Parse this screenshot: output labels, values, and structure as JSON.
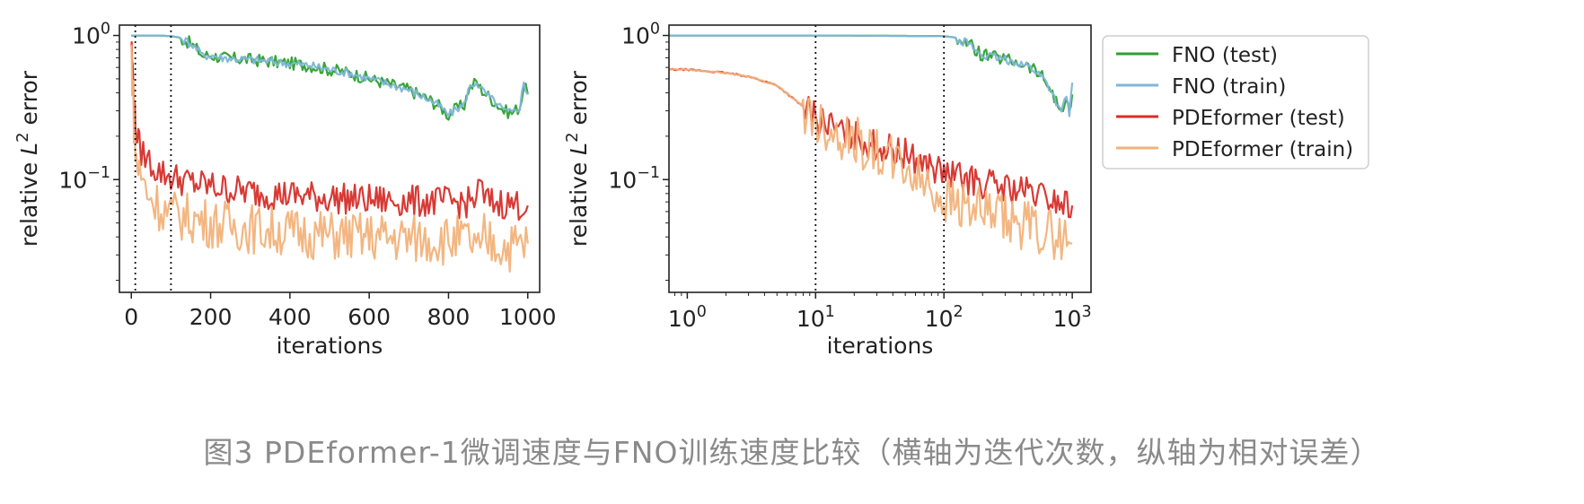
{
  "chart_data": [
    {
      "type": "line",
      "xscale": "linear",
      "yscale": "log",
      "xlabel": "iterations",
      "ylabel_prefix": "relative ",
      "ylabel_var": "L",
      "ylabel_sup": "2",
      "ylabel_suffix": " error",
      "xlim": [
        -30,
        1030
      ],
      "ylim": [
        0.0165,
        1.18
      ],
      "xticks": [
        0,
        200,
        400,
        600,
        800,
        1000
      ],
      "xtick_labels": [
        "0",
        "200",
        "400",
        "600",
        "800",
        "1000"
      ],
      "yticks": [
        {
          "value": 1,
          "base": "10",
          "exp": "0"
        },
        {
          "value": 0.1,
          "base": "10",
          "exp": "−1"
        }
      ],
      "vlines": [
        10,
        100
      ],
      "grid": false,
      "series": [
        {
          "name": "FNO (test)",
          "color": "#2ca02c",
          "x": [
            0,
            5,
            10,
            30,
            60,
            100,
            120,
            150,
            170,
            180,
            200,
            230,
            260,
            300,
            350,
            400,
            450,
            500,
            550,
            600,
            650,
            700,
            750,
            780,
            800,
            820,
            840,
            850,
            870,
            880,
            900,
            920,
            940,
            960,
            980,
            990,
            1000
          ],
          "y": [
            1.0,
            1.0,
            1.0,
            1.0,
            1.0,
            0.99,
            0.97,
            0.88,
            0.78,
            0.72,
            0.73,
            0.7,
            0.69,
            0.68,
            0.66,
            0.64,
            0.62,
            0.58,
            0.55,
            0.5,
            0.46,
            0.42,
            0.36,
            0.32,
            0.28,
            0.31,
            0.33,
            0.42,
            0.48,
            0.43,
            0.38,
            0.34,
            0.3,
            0.29,
            0.32,
            0.45,
            0.39
          ]
        },
        {
          "name": "FNO (train)",
          "color": "#7fb6d8",
          "x": [
            0,
            5,
            10,
            30,
            60,
            100,
            120,
            150,
            170,
            180,
            200,
            230,
            260,
            300,
            350,
            400,
            450,
            500,
            550,
            600,
            650,
            700,
            750,
            780,
            800,
            820,
            840,
            850,
            870,
            880,
            900,
            920,
            940,
            960,
            980,
            990,
            1000
          ],
          "y": [
            1.0,
            1.0,
            1.0,
            1.0,
            1.0,
            0.99,
            0.97,
            0.88,
            0.78,
            0.72,
            0.73,
            0.7,
            0.69,
            0.68,
            0.66,
            0.64,
            0.62,
            0.58,
            0.55,
            0.5,
            0.46,
            0.42,
            0.36,
            0.32,
            0.28,
            0.31,
            0.33,
            0.42,
            0.48,
            0.43,
            0.38,
            0.34,
            0.3,
            0.29,
            0.32,
            0.47,
            0.39
          ]
        },
        {
          "name": "PDEformer (test)",
          "color": "#d62f2a",
          "x": [
            0,
            2,
            5,
            8,
            10,
            15,
            20,
            30,
            40,
            50,
            60,
            80,
            100,
            150,
            200,
            250,
            300,
            400,
            500,
            600,
            700,
            800,
            850,
            870,
            880,
            890,
            900,
            950,
            1000
          ],
          "y": [
            0.9,
            0.7,
            0.45,
            0.3,
            0.24,
            0.2,
            0.17,
            0.15,
            0.14,
            0.13,
            0.12,
            0.11,
            0.105,
            0.095,
            0.09,
            0.085,
            0.082,
            0.078,
            0.075,
            0.072,
            0.071,
            0.07,
            0.069,
            0.075,
            0.09,
            0.075,
            0.07,
            0.068,
            0.066
          ]
        },
        {
          "name": "PDEformer (train)",
          "color": "#f2b27a",
          "x": [
            0,
            2,
            5,
            8,
            10,
            15,
            20,
            30,
            40,
            50,
            60,
            80,
            100,
            150,
            200,
            250,
            300,
            400,
            500,
            600,
            700,
            800,
            850,
            870,
            880,
            890,
            900,
            950,
            1000
          ],
          "y": [
            0.8,
            0.55,
            0.35,
            0.2,
            0.16,
            0.13,
            0.11,
            0.095,
            0.085,
            0.075,
            0.07,
            0.062,
            0.058,
            0.054,
            0.05,
            0.048,
            0.046,
            0.043,
            0.041,
            0.04,
            0.039,
            0.038,
            0.038,
            0.035,
            0.027,
            0.04,
            0.037,
            0.034,
            0.036
          ]
        }
      ]
    },
    {
      "type": "line",
      "xscale": "log",
      "yscale": "log",
      "xlabel": "iterations",
      "ylabel_prefix": "relative ",
      "ylabel_var": "L",
      "ylabel_sup": "2",
      "ylabel_suffix": " error",
      "xlim": [
        0.72,
        1400
      ],
      "ylim": [
        0.0165,
        1.18
      ],
      "xticks": [
        {
          "value": 1,
          "base": "10",
          "exp": "0"
        },
        {
          "value": 10,
          "base": "10",
          "exp": "1"
        },
        {
          "value": 100,
          "base": "10",
          "exp": "2"
        },
        {
          "value": 1000,
          "base": "10",
          "exp": "3"
        }
      ],
      "yticks": [
        {
          "value": 1,
          "base": "10",
          "exp": "0"
        },
        {
          "value": 0.1,
          "base": "10",
          "exp": "−1"
        }
      ],
      "vlines": [
        10,
        100
      ],
      "grid": false,
      "legend": "right, outside",
      "series": [
        {
          "name": "FNO (test)",
          "color": "#2ca02c",
          "x": [
            0.72,
            1,
            10,
            100,
            120,
            150,
            180,
            200,
            250,
            300,
            400,
            500,
            600,
            700,
            800,
            900,
            950,
            1000
          ],
          "y": [
            1.0,
            1.0,
            1.0,
            0.99,
            0.97,
            0.9,
            0.78,
            0.73,
            0.7,
            0.68,
            0.64,
            0.58,
            0.5,
            0.4,
            0.3,
            0.36,
            0.28,
            0.39
          ]
        },
        {
          "name": "FNO (train)",
          "color": "#7fb6d8",
          "x": [
            0.72,
            1,
            10,
            100,
            120,
            150,
            180,
            200,
            250,
            300,
            400,
            500,
            600,
            700,
            800,
            900,
            950,
            1000
          ],
          "y": [
            1.0,
            1.0,
            1.0,
            0.99,
            0.97,
            0.9,
            0.78,
            0.73,
            0.7,
            0.68,
            0.64,
            0.58,
            0.5,
            0.4,
            0.3,
            0.36,
            0.28,
            0.47
          ]
        },
        {
          "name": "PDEformer (test)",
          "color": "#d62f2a",
          "x": [
            0.72,
            1,
            2,
            3,
            5,
            8,
            10,
            15,
            20,
            30,
            50,
            70,
            100,
            150,
            200,
            300,
            500,
            700,
            1000
          ],
          "y": [
            0.58,
            0.58,
            0.55,
            0.52,
            0.45,
            0.32,
            0.27,
            0.22,
            0.2,
            0.17,
            0.15,
            0.13,
            0.11,
            0.1,
            0.095,
            0.088,
            0.08,
            0.072,
            0.066
          ]
        },
        {
          "name": "PDEformer (train)",
          "color": "#f2b27a",
          "x": [
            0.72,
            1,
            2,
            3,
            5,
            8,
            10,
            15,
            20,
            30,
            50,
            70,
            100,
            150,
            200,
            300,
            500,
            700,
            1000
          ],
          "y": [
            0.58,
            0.58,
            0.55,
            0.52,
            0.45,
            0.32,
            0.26,
            0.21,
            0.19,
            0.15,
            0.12,
            0.095,
            0.075,
            0.065,
            0.058,
            0.052,
            0.046,
            0.042,
            0.036
          ]
        }
      ]
    }
  ],
  "caption": "图3 PDEformer-1微调速度与FNO训练速度比较（横轴为迭代次数，纵轴为相对误差）"
}
